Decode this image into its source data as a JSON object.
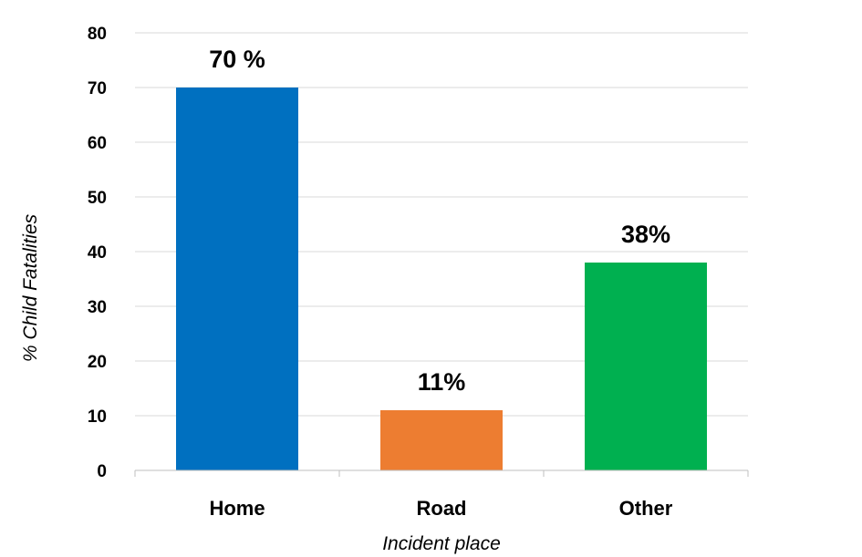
{
  "chart_data": {
    "type": "bar",
    "categories": [
      "Home",
      "Road",
      "Other"
    ],
    "values": [
      70,
      11,
      38
    ],
    "data_labels": [
      "70 %",
      "11%",
      "38%"
    ],
    "colors": [
      "#0070C0",
      "#ED7D31",
      "#00B050"
    ],
    "xlabel": "Incident place",
    "ylabel": "% Child Fatalities",
    "ylim": [
      0,
      80
    ],
    "yticks": [
      0,
      10,
      20,
      30,
      40,
      50,
      60,
      70,
      80
    ],
    "grid": true,
    "legend": "none"
  }
}
